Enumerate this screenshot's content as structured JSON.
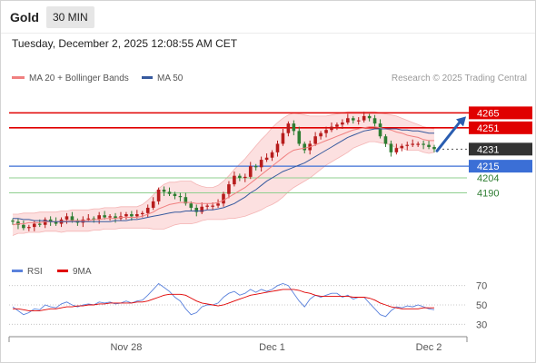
{
  "header": {
    "instrument": "Gold",
    "timeframe": "30 MIN",
    "datetime": "Tuesday, December 2, 2025 12:08:55 AM CET"
  },
  "legend": {
    "ma20_label": "MA 20 + Bollinger Bands",
    "ma50_label": "MA 50",
    "copyright": "Research © 2025 Trading Central",
    "rsi_label": "RSI",
    "rsi_ma_label": "9MA"
  },
  "colors": {
    "bull": "#b71c1c",
    "bear": "#2e7d32",
    "ma20": "#f08080",
    "ma50": "#375a9e",
    "band_fill": "#fbd6d6",
    "resistance": "#e00000",
    "support": "#3b6fd6",
    "target": "#8fcf8f",
    "rsi": "#5b82dc",
    "rsi_ma": "#e00000"
  },
  "chart_data": [
    {
      "type": "candlestick",
      "ylim": [
        4130,
        4290
      ],
      "x_tick_labels": [
        {
          "label": "Nov 28",
          "index": 21
        },
        {
          "label": "Dec 1",
          "index": 48
        },
        {
          "label": "Dec 2",
          "index": 77
        }
      ],
      "horizontal_levels": [
        {
          "value": 4265,
          "label": "4265",
          "kind": "resistance"
        },
        {
          "value": 4251,
          "label": "4251",
          "kind": "resistance"
        },
        {
          "value": 4231,
          "label": "4231",
          "kind": "last"
        },
        {
          "value": 4215,
          "label": "4215",
          "kind": "pivot"
        },
        {
          "value": 4204,
          "label": "4204",
          "kind": "target"
        },
        {
          "value": 4190,
          "label": "4190",
          "kind": "target"
        }
      ],
      "closes": [
        4163,
        4160,
        4157,
        4158,
        4161,
        4160,
        4165,
        4163,
        4161,
        4165,
        4168,
        4164,
        4162,
        4165,
        4166,
        4165,
        4169,
        4167,
        4168,
        4166,
        4168,
        4170,
        4168,
        4170,
        4171,
        4176,
        4182,
        4193,
        4191,
        4189,
        4187,
        4186,
        4180,
        4176,
        4172,
        4177,
        4178,
        4178,
        4180,
        4189,
        4198,
        4206,
        4204,
        4205,
        4215,
        4214,
        4221,
        4223,
        4228,
        4236,
        4246,
        4255,
        4248,
        4236,
        4230,
        4236,
        4243,
        4246,
        4249,
        4252,
        4254,
        4256,
        4260,
        4258,
        4258,
        4262,
        4260,
        4255,
        4243,
        4236,
        4228,
        4232,
        4234,
        4235,
        4236,
        4236,
        4235,
        4233,
        4231
      ],
      "ma20": [
        4160,
        4161,
        4161,
        4162,
        4162,
        4162,
        4163,
        4163,
        4163,
        4163,
        4164,
        4164,
        4164,
        4164,
        4164,
        4165,
        4165,
        4166,
        4166,
        4166,
        4167,
        4167,
        4167,
        4167,
        4168,
        4170,
        4172,
        4175,
        4177,
        4179,
        4180,
        4181,
        4181,
        4181,
        4180,
        4180,
        4180,
        4180,
        4181,
        4183,
        4186,
        4189,
        4192,
        4195,
        4199,
        4203,
        4207,
        4211,
        4215,
        4219,
        4223,
        4227,
        4230,
        4231,
        4232,
        4233,
        4235,
        4237,
        4239,
        4241,
        4243,
        4245,
        4247,
        4249,
        4250,
        4251,
        4252,
        4252,
        4251,
        4250,
        4249,
        4247,
        4246,
        4244,
        4243,
        4242,
        4240,
        4239,
        4239
      ],
      "bb_upper": [
        4170,
        4170,
        4171,
        4171,
        4171,
        4172,
        4172,
        4172,
        4172,
        4173,
        4173,
        4174,
        4174,
        4174,
        4174,
        4175,
        4175,
        4176,
        4176,
        4176,
        4177,
        4177,
        4177,
        4177,
        4179,
        4183,
        4188,
        4194,
        4198,
        4200,
        4200,
        4201,
        4201,
        4201,
        4198,
        4196,
        4195,
        4195,
        4197,
        4201,
        4206,
        4212,
        4217,
        4222,
        4228,
        4234,
        4240,
        4245,
        4251,
        4256,
        4260,
        4263,
        4265,
        4264,
        4263,
        4262,
        4262,
        4262,
        4262,
        4263,
        4264,
        4265,
        4266,
        4266,
        4266,
        4266,
        4266,
        4266,
        4265,
        4264,
        4263,
        4262,
        4260,
        4258,
        4256,
        4254,
        4252,
        4251,
        4250
      ],
      "bb_lower": [
        4150,
        4152,
        4152,
        4153,
        4153,
        4153,
        4154,
        4154,
        4154,
        4153,
        4154,
        4154,
        4154,
        4154,
        4154,
        4155,
        4155,
        4156,
        4156,
        4156,
        4157,
        4157,
        4157,
        4157,
        4157,
        4157,
        4156,
        4156,
        4156,
        4158,
        4160,
        4161,
        4161,
        4161,
        4162,
        4164,
        4165,
        4165,
        4165,
        4165,
        4166,
        4166,
        4167,
        4168,
        4170,
        4172,
        4174,
        4177,
        4179,
        4182,
        4186,
        4191,
        4195,
        4198,
        4201,
        4204,
        4208,
        4212,
        4216,
        4219,
        4222,
        4225,
        4228,
        4232,
        4234,
        4236,
        4238,
        4238,
        4237,
        4236,
        4235,
        4232,
        4232,
        4230,
        4230,
        4230,
        4228,
        4227,
        4228
      ],
      "ma50": [
        4166,
        4166,
        4165,
        4165,
        4164,
        4164,
        4164,
        4163,
        4163,
        4163,
        4163,
        4163,
        4163,
        4163,
        4163,
        4163,
        4163,
        4163,
        4163,
        4164,
        4164,
        4164,
        4165,
        4165,
        4166,
        4167,
        4168,
        4169,
        4170,
        4171,
        4172,
        4172,
        4173,
        4173,
        4173,
        4173,
        4174,
        4174,
        4175,
        4176,
        4178,
        4180,
        4183,
        4186,
        4190,
        4193,
        4197,
        4201,
        4204,
        4207,
        4210,
        4212,
        4214,
        4216,
        4218,
        4221,
        4224,
        4227,
        4230,
        4233,
        4236,
        4239,
        4242,
        4244,
        4246,
        4248,
        4249,
        4250,
        4250,
        4250,
        4250,
        4250,
        4249,
        4249,
        4248,
        4248,
        4247,
        4246,
        4246
      ],
      "projection": {
        "from": 4231,
        "to": 4265
      }
    },
    {
      "type": "line",
      "name": "RSI",
      "ylim": [
        20,
        80
      ],
      "tick_labels": [
        "70",
        "50",
        "30"
      ],
      "tick_values": [
        70,
        50,
        30
      ],
      "rsi": [
        48,
        44,
        40,
        42,
        46,
        45,
        50,
        48,
        47,
        51,
        53,
        50,
        48,
        50,
        51,
        50,
        53,
        52,
        53,
        51,
        52,
        54,
        52,
        54,
        55,
        60,
        66,
        72,
        68,
        64,
        58,
        54,
        46,
        40,
        42,
        48,
        50,
        50,
        52,
        58,
        62,
        64,
        60,
        62,
        66,
        63,
        66,
        64,
        66,
        70,
        72,
        70,
        62,
        54,
        48,
        56,
        60,
        58,
        60,
        62,
        62,
        58,
        60,
        56,
        58,
        58,
        52,
        46,
        40,
        38,
        44,
        48,
        47,
        49,
        48,
        50,
        48,
        46,
        45
      ],
      "rsi_ma": [
        46,
        46,
        45,
        44,
        44,
        44,
        45,
        46,
        46,
        47,
        48,
        48,
        49,
        49,
        50,
        50,
        51,
        51,
        52,
        52,
        52,
        52,
        52,
        53,
        53,
        54,
        56,
        58,
        60,
        61,
        61,
        61,
        60,
        57,
        54,
        52,
        51,
        50,
        49,
        50,
        52,
        54,
        56,
        58,
        60,
        61,
        62,
        63,
        64,
        65,
        66,
        66,
        66,
        65,
        63,
        62,
        60,
        59,
        59,
        59,
        59,
        59,
        59,
        58,
        58,
        58,
        57,
        55,
        52,
        50,
        48,
        47,
        46,
        46,
        46,
        46,
        47,
        47,
        47
      ]
    }
  ]
}
